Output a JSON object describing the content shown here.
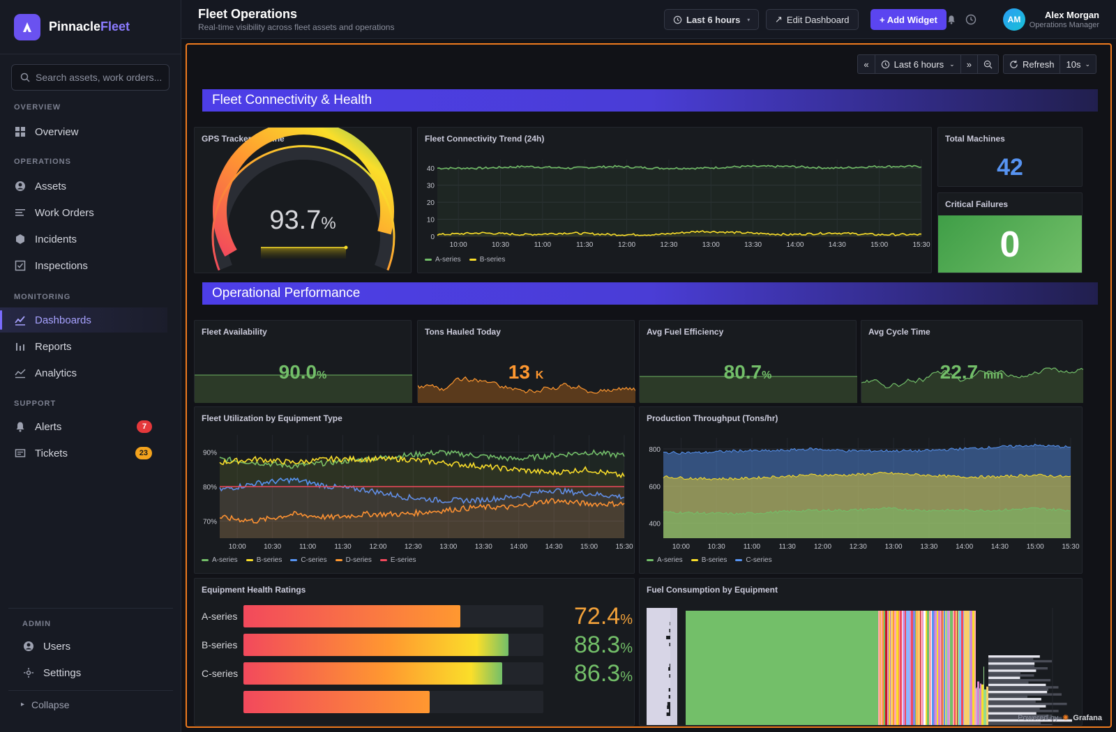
{
  "brand": {
    "name_a": "Pinnacle",
    "name_b": "Fleet",
    "accent": "#6a52f0"
  },
  "search": {
    "placeholder": "Search assets, work orders..."
  },
  "nav": {
    "overview_section": "OVERVIEW",
    "overview": "Overview",
    "operations_section": "OPERATIONS",
    "assets": "Assets",
    "work_orders": "Work Orders",
    "incidents": "Incidents",
    "inspections": "Inspections",
    "monitoring_section": "MONITORING",
    "dashboards": "Dashboards",
    "reports": "Reports",
    "analytics": "Analytics",
    "support_section": "SUPPORT",
    "alerts": "Alerts",
    "alerts_count": "7",
    "tickets": "Tickets",
    "tickets_count": "23",
    "admin_section": "ADMIN",
    "users": "Users",
    "settings": "Settings",
    "collapse": "Collapse"
  },
  "header": {
    "title": "Fleet Operations",
    "subtitle": "Real-time visibility across fleet assets and operations",
    "time_range": "Last 6 hours",
    "edit": "Edit Dashboard",
    "add": "+ Add Widget",
    "user_initials": "AM",
    "user_name": "Alex Morgan",
    "user_role": "Operations Manager"
  },
  "dashboard": {
    "time_range": "Last 6 hours",
    "refresh": "Refresh",
    "refresh_interval": "10s",
    "row1_title": "Fleet Connectivity & Health",
    "row2_title": "Operational Performance",
    "powered_by": "Powered by",
    "grafana": "Grafana"
  },
  "panels": {
    "gps": {
      "title": "GPS Trackers Online",
      "value": "93.7",
      "unit": "%",
      "level": 0.937
    },
    "trend": {
      "title": "Fleet Connectivity Trend (24h)"
    },
    "total": {
      "title": "Total Machines",
      "value": "42"
    },
    "critical": {
      "title": "Critical Failures",
      "value": "0"
    },
    "availability": {
      "title": "Fleet Availability",
      "value": "90.0",
      "unit": "%"
    },
    "tons": {
      "title": "Tons Hauled Today",
      "value": "13",
      "unit": "K"
    },
    "fuel_eff": {
      "title": "Avg Fuel Efficiency",
      "value": "80.7",
      "unit": "%"
    },
    "cycle": {
      "title": "Avg Cycle Time",
      "value": "22.7",
      "unit": "min"
    },
    "utilization": {
      "title": "Fleet Utilization by Equipment Type"
    },
    "throughput": {
      "title": "Production Throughput (Tons/hr)"
    },
    "health": {
      "title": "Equipment Health Ratings",
      "rows": [
        {
          "label": "A-series",
          "value": "72.4",
          "unit": "%",
          "level": 0.724,
          "color": "#f3a23a"
        },
        {
          "label": "B-series",
          "value": "88.3",
          "unit": "%",
          "level": 0.883,
          "color": "#73bf69"
        },
        {
          "label": "C-series",
          "value": "86.3",
          "unit": "%",
          "level": 0.863,
          "color": "#73bf69"
        }
      ]
    },
    "fuel_cons": {
      "title": "Fuel Consumption by Equipment"
    }
  },
  "chart_data": [
    {
      "type": "line",
      "title": "Fleet Connectivity Trend (24h)",
      "x": [
        "10:00",
        "10:30",
        "11:00",
        "11:30",
        "12:00",
        "12:30",
        "13:00",
        "13:30",
        "14:00",
        "14:30",
        "15:00",
        "15:30"
      ],
      "ylim": [
        0,
        45
      ],
      "yticks": [
        0,
        10,
        20,
        30,
        40
      ],
      "series": [
        {
          "name": "A-series",
          "color": "#73bf69",
          "values": [
            40,
            40,
            41,
            40,
            41,
            40,
            40,
            41,
            41,
            40,
            41,
            41
          ]
        },
        {
          "name": "B-series",
          "color": "#fade2a",
          "values": [
            1,
            2,
            1,
            2,
            1,
            1,
            3,
            2,
            1,
            2,
            1,
            1
          ]
        }
      ]
    },
    {
      "type": "line",
      "title": "Fleet Utilization by Equipment Type",
      "x": [
        "10:00",
        "10:30",
        "11:00",
        "11:30",
        "12:00",
        "12:30",
        "13:00",
        "13:30",
        "14:00",
        "14:30",
        "15:00",
        "15:30"
      ],
      "ylim": [
        65,
        95
      ],
      "yticks": [
        "70%",
        "80%",
        "90%"
      ],
      "series": [
        {
          "name": "A-series",
          "color": "#73bf69",
          "values": [
            88,
            87,
            86,
            87,
            88,
            89,
            90,
            89,
            88,
            89,
            90,
            89
          ]
        },
        {
          "name": "B-series",
          "color": "#fade2a",
          "values": [
            87,
            88,
            87,
            88,
            88,
            88,
            87,
            86,
            85,
            84,
            85,
            83
          ]
        },
        {
          "name": "C-series",
          "color": "#5794f2",
          "values": [
            79,
            81,
            82,
            80,
            79,
            77,
            76,
            76,
            77,
            79,
            78,
            77
          ]
        },
        {
          "name": "D-series",
          "color": "#ff9830",
          "values": [
            71,
            70,
            72,
            71,
            72,
            72,
            73,
            74,
            74,
            76,
            75,
            75
          ]
        },
        {
          "name": "E-series",
          "color": "#f2495c",
          "values": [
            80,
            80,
            80,
            80,
            80,
            80,
            80,
            80,
            80,
            80,
            80,
            80
          ]
        }
      ]
    },
    {
      "type": "area",
      "title": "Production Throughput (Tons/hr)",
      "x": [
        "10:00",
        "10:30",
        "11:00",
        "11:30",
        "12:00",
        "12:30",
        "13:00",
        "13:30",
        "14:00",
        "14:30",
        "15:00",
        "15:30"
      ],
      "ylim": [
        320,
        860
      ],
      "yticks": [
        400,
        600,
        800
      ],
      "series": [
        {
          "name": "A-series",
          "color": "#73bf69",
          "values": [
            460,
            455,
            450,
            460,
            470,
            470,
            480,
            470,
            470,
            470,
            480,
            470
          ]
        },
        {
          "name": "B-series",
          "color": "#fade2a",
          "values": [
            650,
            640,
            640,
            650,
            660,
            660,
            670,
            660,
            650,
            650,
            660,
            650
          ]
        },
        {
          "name": "C-series",
          "color": "#5794f2",
          "values": [
            780,
            780,
            790,
            790,
            800,
            790,
            790,
            790,
            800,
            810,
            820,
            810
          ]
        }
      ]
    }
  ]
}
